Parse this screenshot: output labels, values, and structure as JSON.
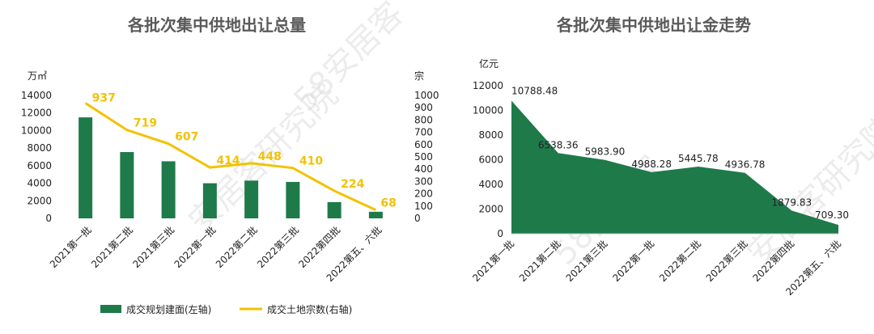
{
  "chart_data": [
    {
      "type": "bar",
      "title": "各批次集中供地出让总量",
      "categories": [
        "2021第一批",
        "2021第二批",
        "2021第三批",
        "2022第一批",
        "2022第二批",
        "2022第三批",
        "2022第四批",
        "2022第五、六批"
      ],
      "left_axis_unit": "万㎡",
      "right_axis_unit": "宗",
      "ylim_left": [
        0,
        14000
      ],
      "ylim_right": [
        0,
        1000
      ],
      "left_ticks": [
        "0",
        "2000",
        "4000",
        "6000",
        "8000",
        "10000",
        "12000",
        "14000"
      ],
      "right_ticks": [
        "0",
        "100",
        "200",
        "300",
        "400",
        "500",
        "600",
        "700",
        "800",
        "900",
        "1000"
      ],
      "series": [
        {
          "name": "成交规划建面(左轴)",
          "type": "bar",
          "axis": "left",
          "color": "#1f7a4a",
          "values": [
            11500,
            7550,
            6500,
            4000,
            4300,
            4150,
            1850,
            750
          ]
        },
        {
          "name": "成交土地宗数(右轴)",
          "type": "line",
          "axis": "right",
          "color": "#f2c200",
          "values": [
            937,
            719,
            607,
            414,
            448,
            410,
            224,
            68
          ]
        }
      ],
      "legend_position": "bottom",
      "grid": false
    },
    {
      "type": "area",
      "title": "各批次集中供地出让金走势",
      "categories": [
        "2021第一批",
        "2021第二批",
        "2021第三批",
        "2022第一批",
        "2022第二批",
        "2022第三批",
        "2022第四批",
        "2022第五、六批"
      ],
      "left_axis_unit": "亿元",
      "ylim": [
        0,
        12000
      ],
      "ticks": [
        "0",
        "2000",
        "4000",
        "6000",
        "8000",
        "10000",
        "12000"
      ],
      "values": [
        10788.48,
        6538.36,
        5983.9,
        4988.28,
        5445.78,
        4936.78,
        1879.83,
        709.3
      ],
      "value_labels": [
        "10788.48",
        "6538.36",
        "5983.90",
        "4988.28",
        "5445.78",
        "4936.78",
        "1879.83",
        "709.30"
      ],
      "color": "#1f7a4a",
      "grid": false
    }
  ],
  "watermarks": [
    "58安居客",
    "安居客研究院"
  ]
}
